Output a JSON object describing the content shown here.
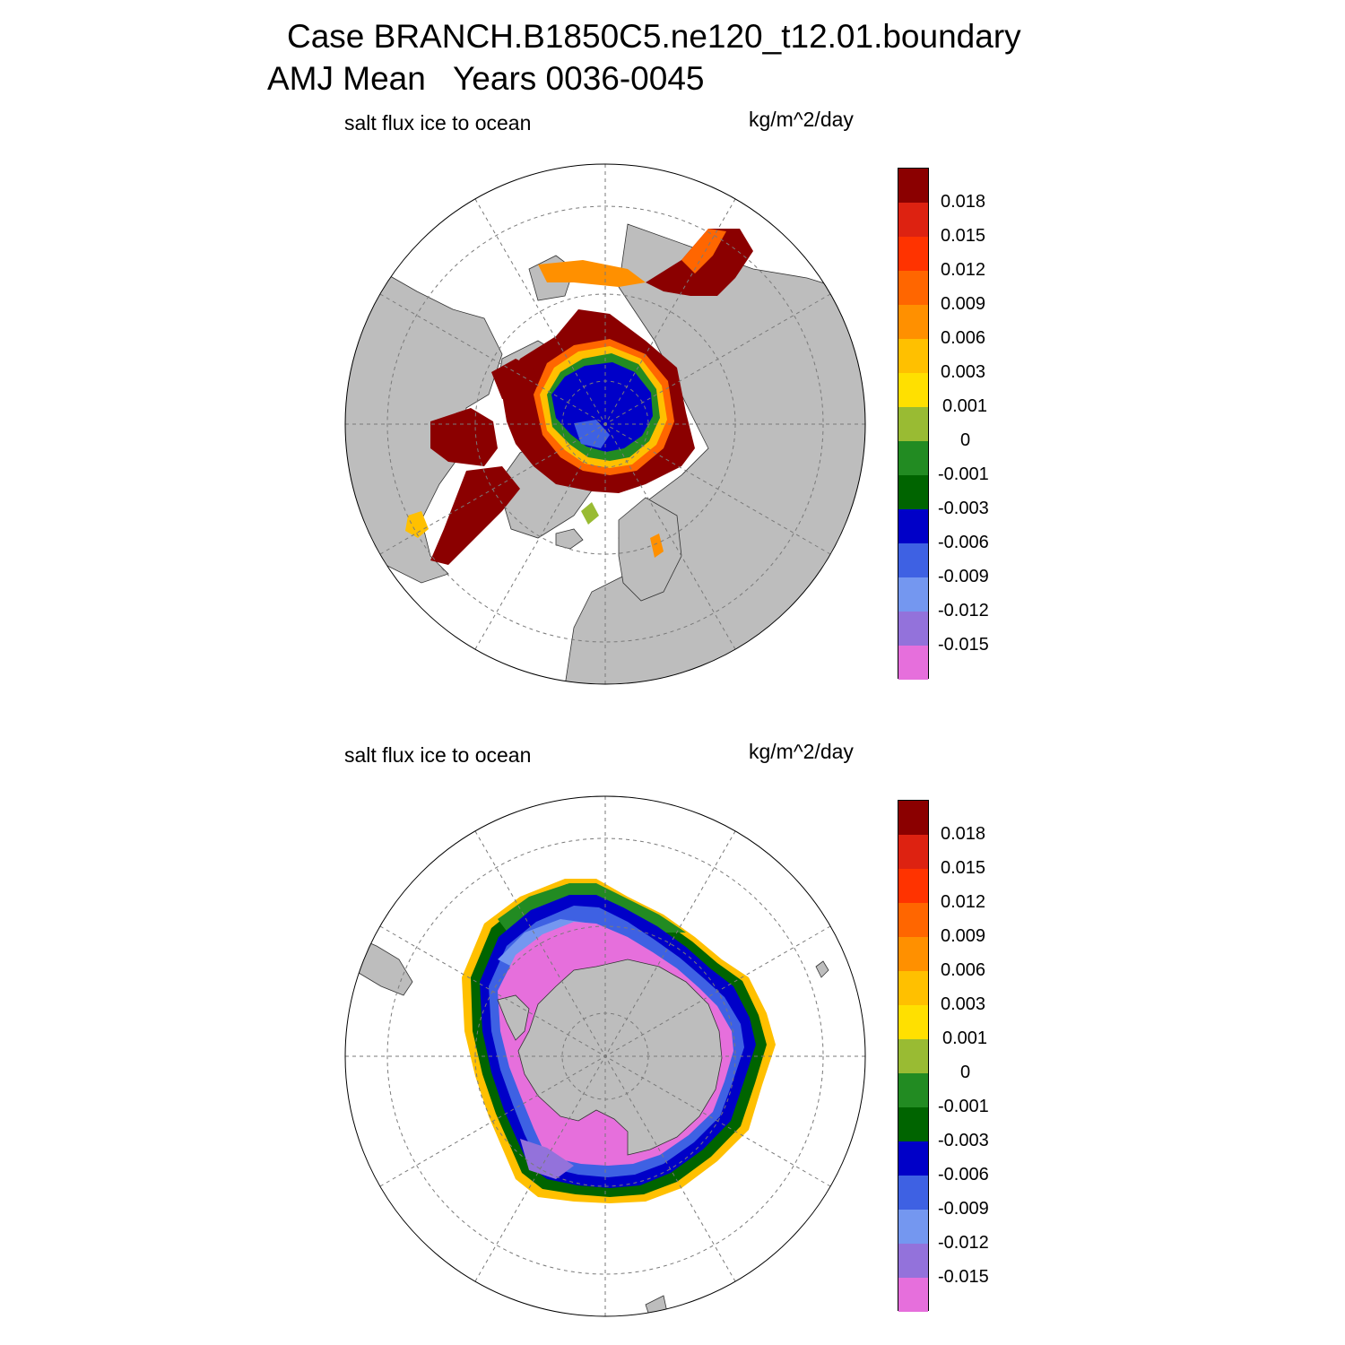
{
  "title_line1": "Case BRANCH.B1850C5.ne120_t12.01.boundary",
  "title_line2": "AMJ Mean   Years 0036-0045",
  "colors": {
    "land": "#bdbdbd",
    "ocean_no_ice": "#ffffff",
    "grid": "#7a7a7a",
    "scale": [
      "#e66fdc",
      "#9372db",
      "#7497f0",
      "#3e61e3",
      "#0000c8",
      "#006400",
      "#228b22",
      "#99bb33",
      "#ffe000",
      "#ffc000",
      "#ff9000",
      "#ff6600",
      "#ff3300",
      "#dd2211",
      "#8b0000"
    ]
  },
  "panels": [
    {
      "id": "north",
      "name": "Northern hemisphere",
      "variable": "salt flux ice to ocean",
      "units": "kg/m^2/day"
    },
    {
      "id": "south",
      "name": "Southern hemisphere",
      "variable": "salt flux ice to ocean",
      "units": "kg/m^2/day"
    }
  ],
  "colorbar": {
    "labels": [
      "0.018",
      "0.015",
      "0.012",
      "0.009",
      "0.006",
      "0.003",
      "0.001",
      "0",
      "-0.001",
      "-0.003",
      "-0.006",
      "-0.009",
      "-0.012",
      "-0.015"
    ],
    "boxes_top_to_bottom": [
      "#8b0000",
      "#dd2211",
      "#ff3300",
      "#ff6600",
      "#ff9000",
      "#ffc000",
      "#ffe000",
      "#99bb33",
      "#228b22",
      "#006400",
      "#0000c8",
      "#3e61e3",
      "#7497f0",
      "#9372db",
      "#e66fdc"
    ]
  }
}
